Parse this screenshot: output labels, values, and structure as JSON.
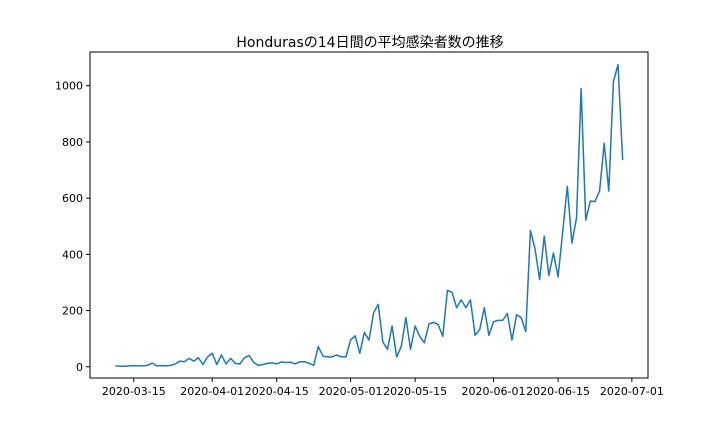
{
  "chart_data": {
    "type": "line",
    "title": "Hondurasの14日間の平均感染者数の推移",
    "xlabel": "",
    "ylabel": "",
    "ylim": [
      -40,
      1120
    ],
    "grid": false,
    "legend": "none",
    "x_tick_labels": [
      "2020-03-15",
      "2020-04-01",
      "2020-04-15",
      "2020-05-01",
      "2020-05-15",
      "2020-06-01",
      "2020-06-15",
      "2020-07-01"
    ],
    "y_ticks": [
      0,
      200,
      400,
      600,
      800,
      1000
    ],
    "y_tick_labels": [
      "0",
      "200",
      "400",
      "600",
      "800",
      "1000"
    ],
    "series": [
      {
        "color": "#1f77b4",
        "points": [
          [
            "2020-03-11",
            3
          ],
          [
            "2020-03-12",
            2
          ],
          [
            "2020-03-13",
            2
          ],
          [
            "2020-03-14",
            3
          ],
          [
            "2020-03-15",
            4
          ],
          [
            "2020-03-16",
            3
          ],
          [
            "2020-03-17",
            3
          ],
          [
            "2020-03-18",
            5
          ],
          [
            "2020-03-19",
            13
          ],
          [
            "2020-03-20",
            3
          ],
          [
            "2020-03-21",
            4
          ],
          [
            "2020-03-22",
            3
          ],
          [
            "2020-03-23",
            5
          ],
          [
            "2020-03-24",
            10
          ],
          [
            "2020-03-25",
            20
          ],
          [
            "2020-03-26",
            18
          ],
          [
            "2020-03-27",
            30
          ],
          [
            "2020-03-28",
            20
          ],
          [
            "2020-03-29",
            32
          ],
          [
            "2020-03-30",
            8
          ],
          [
            "2020-03-31",
            35
          ],
          [
            "2020-04-01",
            48
          ],
          [
            "2020-04-02",
            8
          ],
          [
            "2020-04-03",
            42
          ],
          [
            "2020-04-04",
            10
          ],
          [
            "2020-04-05",
            30
          ],
          [
            "2020-04-06",
            12
          ],
          [
            "2020-04-07",
            10
          ],
          [
            "2020-04-08",
            32
          ],
          [
            "2020-04-09",
            40
          ],
          [
            "2020-04-10",
            15
          ],
          [
            "2020-04-11",
            5
          ],
          [
            "2020-04-12",
            8
          ],
          [
            "2020-04-13",
            12
          ],
          [
            "2020-04-14",
            14
          ],
          [
            "2020-04-15",
            10
          ],
          [
            "2020-04-16",
            17
          ],
          [
            "2020-04-17",
            15
          ],
          [
            "2020-04-18",
            16
          ],
          [
            "2020-04-19",
            10
          ],
          [
            "2020-04-20",
            18
          ],
          [
            "2020-04-21",
            18
          ],
          [
            "2020-04-22",
            12
          ],
          [
            "2020-04-23",
            5
          ],
          [
            "2020-04-24",
            72
          ],
          [
            "2020-04-25",
            38
          ],
          [
            "2020-04-26",
            35
          ],
          [
            "2020-04-27",
            35
          ],
          [
            "2020-04-28",
            42
          ],
          [
            "2020-04-29",
            35
          ],
          [
            "2020-04-30",
            35
          ],
          [
            "2020-05-01",
            95
          ],
          [
            "2020-05-02",
            110
          ],
          [
            "2020-05-03",
            48
          ],
          [
            "2020-05-04",
            122
          ],
          [
            "2020-05-05",
            95
          ],
          [
            "2020-05-06",
            192
          ],
          [
            "2020-05-07",
            222
          ],
          [
            "2020-05-08",
            88
          ],
          [
            "2020-05-09",
            62
          ],
          [
            "2020-05-10",
            145
          ],
          [
            "2020-05-11",
            35
          ],
          [
            "2020-05-12",
            72
          ],
          [
            "2020-05-13",
            175
          ],
          [
            "2020-05-14",
            62
          ],
          [
            "2020-05-15",
            145
          ],
          [
            "2020-05-16",
            108
          ],
          [
            "2020-05-17",
            85
          ],
          [
            "2020-05-18",
            152
          ],
          [
            "2020-05-19",
            158
          ],
          [
            "2020-05-20",
            150
          ],
          [
            "2020-05-21",
            108
          ],
          [
            "2020-05-22",
            272
          ],
          [
            "2020-05-23",
            265
          ],
          [
            "2020-05-24",
            210
          ],
          [
            "2020-05-25",
            238
          ],
          [
            "2020-05-26",
            210
          ],
          [
            "2020-05-27",
            238
          ],
          [
            "2020-05-28",
            112
          ],
          [
            "2020-05-29",
            132
          ],
          [
            "2020-05-30",
            210
          ],
          [
            "2020-05-31",
            112
          ],
          [
            "2020-06-01",
            160
          ],
          [
            "2020-06-02",
            165
          ],
          [
            "2020-06-03",
            165
          ],
          [
            "2020-06-04",
            190
          ],
          [
            "2020-06-05",
            95
          ],
          [
            "2020-06-06",
            185
          ],
          [
            "2020-06-07",
            175
          ],
          [
            "2020-06-08",
            125
          ],
          [
            "2020-06-09",
            485
          ],
          [
            "2020-06-10",
            420
          ],
          [
            "2020-06-11",
            310
          ],
          [
            "2020-06-12",
            465
          ],
          [
            "2020-06-13",
            325
          ],
          [
            "2020-06-14",
            405
          ],
          [
            "2020-06-15",
            320
          ],
          [
            "2020-06-16",
            480
          ],
          [
            "2020-06-17",
            642
          ],
          [
            "2020-06-18",
            440
          ],
          [
            "2020-06-19",
            530
          ],
          [
            "2020-06-20",
            990
          ],
          [
            "2020-06-21",
            522
          ],
          [
            "2020-06-22",
            590
          ],
          [
            "2020-06-23",
            588
          ],
          [
            "2020-06-24",
            625
          ],
          [
            "2020-06-25",
            795
          ],
          [
            "2020-06-26",
            625
          ],
          [
            "2020-06-27",
            1015
          ],
          [
            "2020-06-28",
            1075
          ],
          [
            "2020-06-29",
            735
          ]
        ]
      }
    ]
  }
}
